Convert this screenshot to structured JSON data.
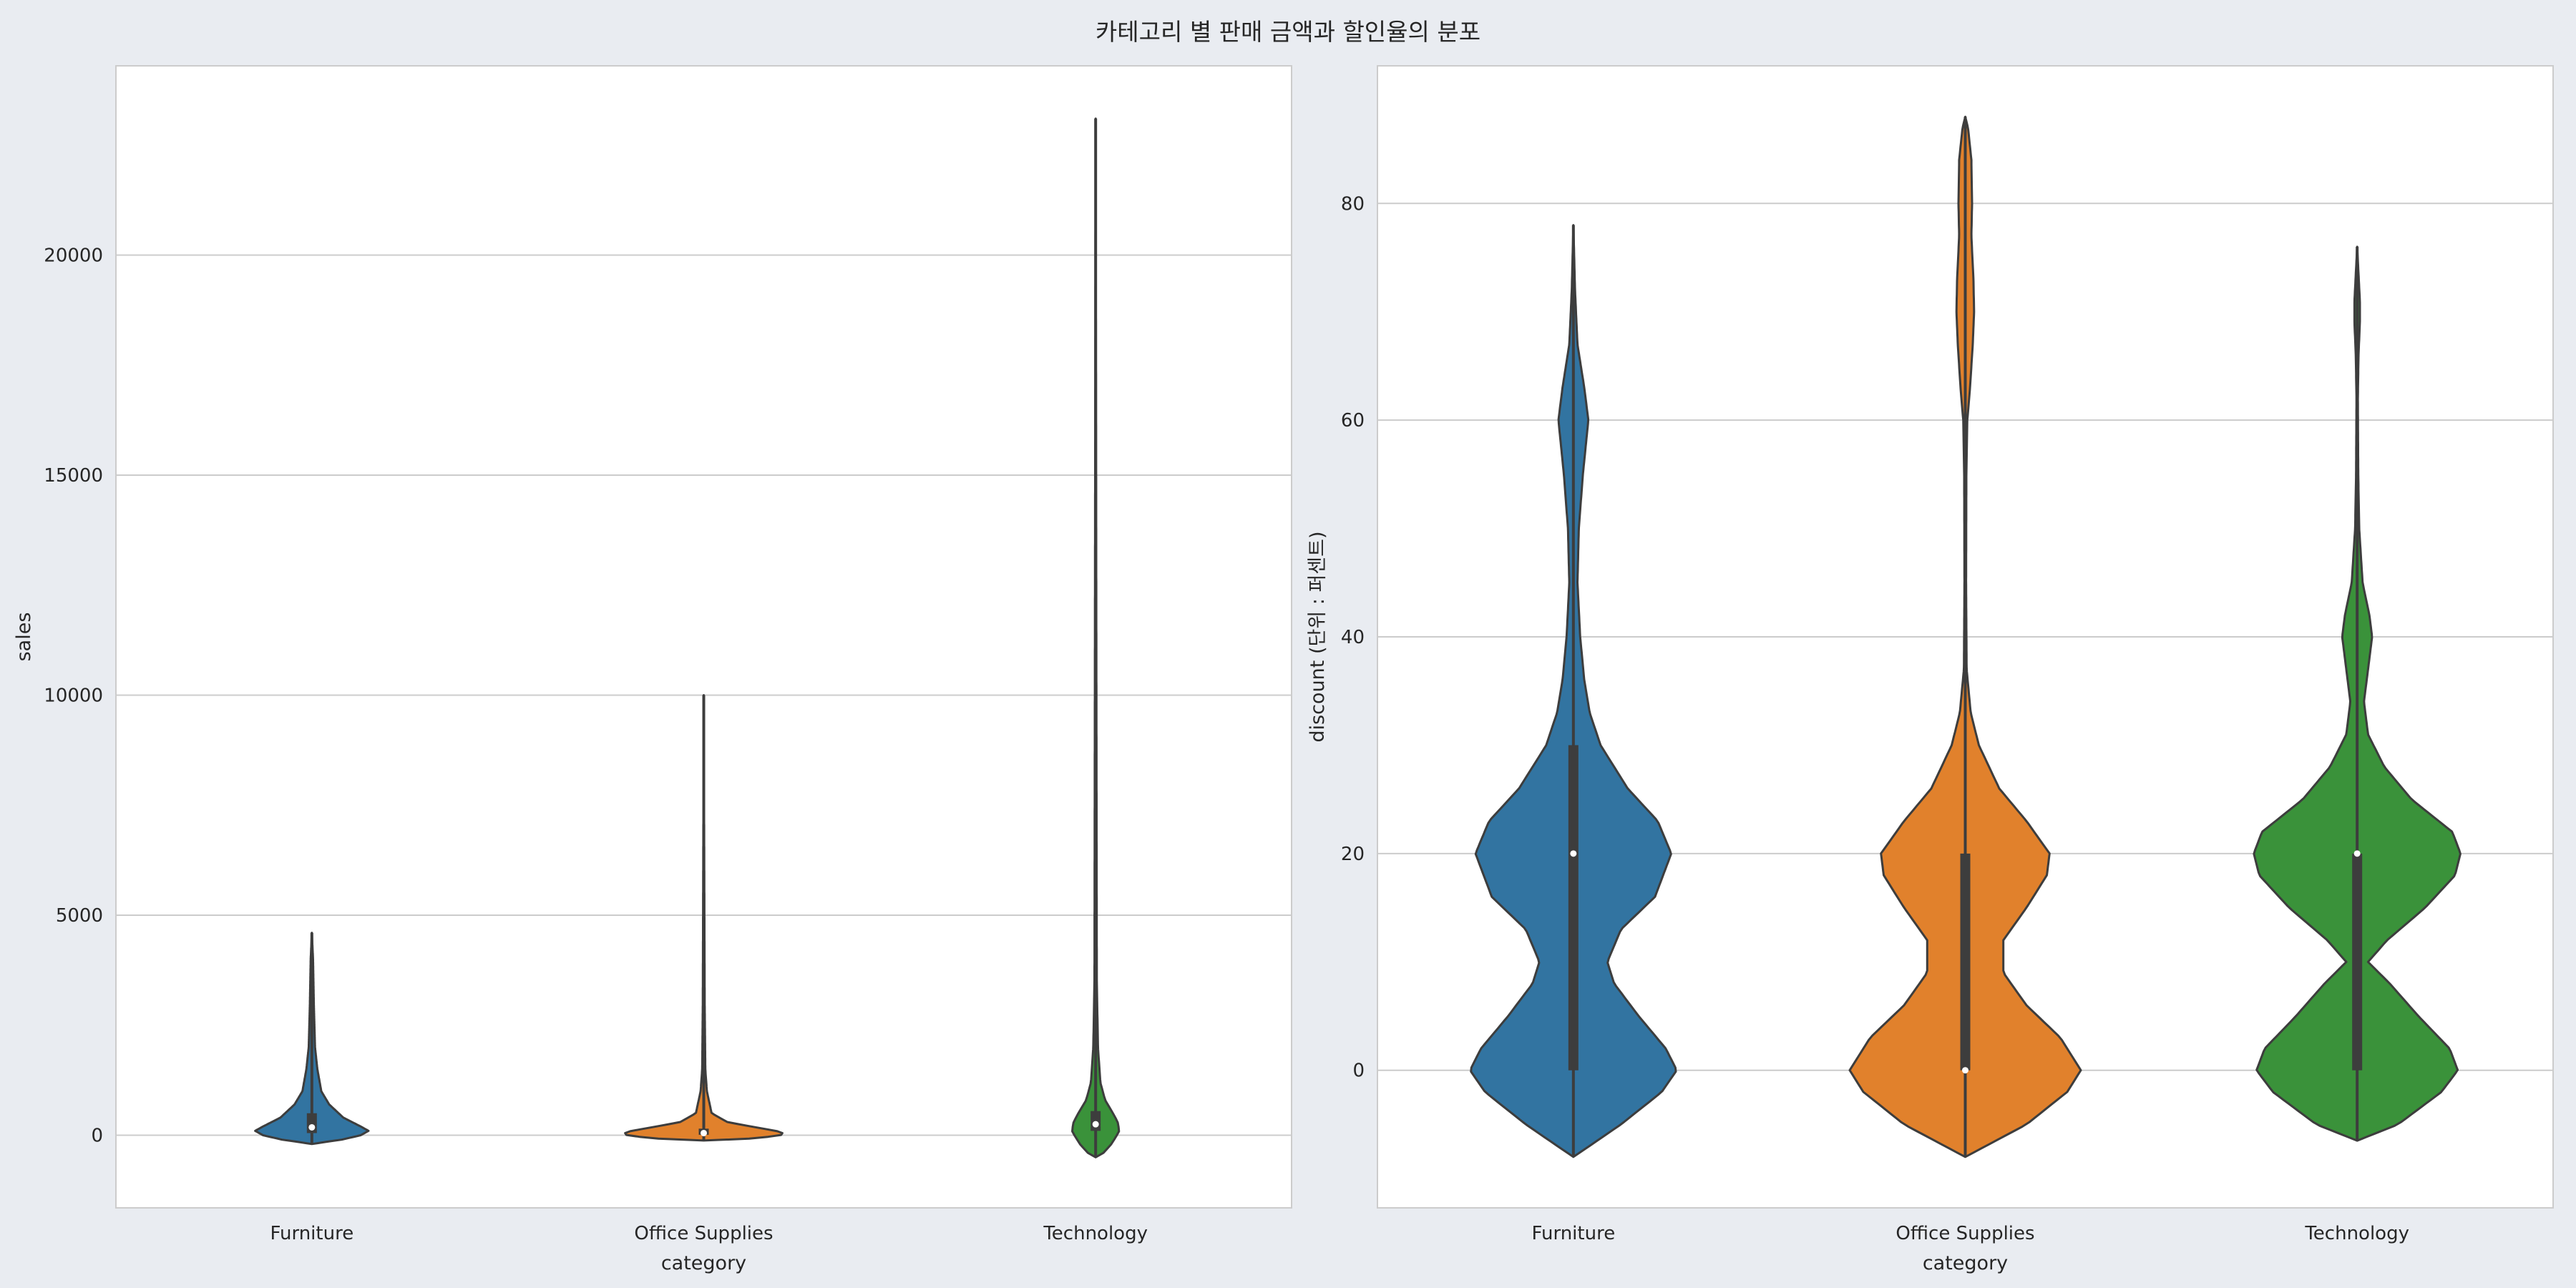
{
  "title": "카테고리 별 판매 금액과 할인율의 분포",
  "colors": {
    "Furniture": "#3274a1",
    "Office Supplies": "#e1812c",
    "Technology": "#3a923a",
    "edge": "#3d3d3d",
    "grid": "#cccccc",
    "axes_bg": "#ffffff",
    "fig_bg": "#e9ecf1"
  },
  "chart_data": [
    {
      "type": "violin",
      "xlabel": "category",
      "ylabel": "sales",
      "categories": [
        "Furniture",
        "Office Supplies",
        "Technology"
      ],
      "ylim": [
        -1650,
        24300
      ],
      "yticks": [
        0,
        5000,
        10000,
        15000,
        20000
      ],
      "grid": true,
      "violins": [
        {
          "category": "Furniture",
          "min": -200,
          "max": 4600,
          "q1": 50,
          "median": 180,
          "q3": 500,
          "profile": [
            [
              -200,
              0.0
            ],
            [
              -150,
              0.18
            ],
            [
              -100,
              0.38
            ],
            [
              0,
              0.62
            ],
            [
              100,
              0.72
            ],
            [
              200,
              0.62
            ],
            [
              400,
              0.4
            ],
            [
              700,
              0.22
            ],
            [
              1000,
              0.12
            ],
            [
              1500,
              0.07
            ],
            [
              2000,
              0.04
            ],
            [
              3000,
              0.025
            ],
            [
              4000,
              0.015
            ],
            [
              4600,
              0.0
            ]
          ]
        },
        {
          "category": "Office Supplies",
          "min": -120,
          "max": 10000,
          "q1": 10,
          "median": 50,
          "q3": 150,
          "profile": [
            [
              -120,
              0.0
            ],
            [
              -100,
              0.45
            ],
            [
              -30,
              0.85
            ],
            [
              0,
              0.98
            ],
            [
              50,
              1.0
            ],
            [
              100,
              0.92
            ],
            [
              150,
              0.75
            ],
            [
              300,
              0.3
            ],
            [
              500,
              0.1
            ],
            [
              1000,
              0.04
            ],
            [
              1500,
              0.02
            ],
            [
              3000,
              0.012
            ],
            [
              10000,
              0.0
            ]
          ]
        },
        {
          "category": "Technology",
          "min": -500,
          "max": 23100,
          "q1": 100,
          "median": 250,
          "q3": 550,
          "profile": [
            [
              -500,
              0.0
            ],
            [
              -400,
              0.1
            ],
            [
              -200,
              0.2
            ],
            [
              0,
              0.27
            ],
            [
              100,
              0.3
            ],
            [
              300,
              0.28
            ],
            [
              500,
              0.22
            ],
            [
              800,
              0.12
            ],
            [
              1200,
              0.06
            ],
            [
              2000,
              0.03
            ],
            [
              3500,
              0.015
            ],
            [
              23100,
              0.0
            ]
          ]
        }
      ]
    },
    {
      "type": "violin",
      "xlabel": "category",
      "ylabel": "discount (단위 : 퍼센트)",
      "categories": [
        "Furniture",
        "Office Supplies",
        "Technology"
      ],
      "ylim": [
        -12.7,
        92.7
      ],
      "yticks": [
        0,
        20,
        40,
        60,
        80
      ],
      "grid": true,
      "violins": [
        {
          "category": "Furniture",
          "min": -8,
          "max": 78,
          "q1": 0,
          "median": 20,
          "q3": 30,
          "profile": [
            [
              -8,
              0.0
            ],
            [
              -5,
              0.35
            ],
            [
              -2,
              0.65
            ],
            [
              0,
              0.76
            ],
            [
              2,
              0.68
            ],
            [
              5,
              0.48
            ],
            [
              8,
              0.3
            ],
            [
              10,
              0.25
            ],
            [
              13,
              0.35
            ],
            [
              16,
              0.6
            ],
            [
              20,
              0.72
            ],
            [
              23,
              0.62
            ],
            [
              26,
              0.4
            ],
            [
              30,
              0.2
            ],
            [
              33,
              0.12
            ],
            [
              36,
              0.08
            ],
            [
              40,
              0.05
            ],
            [
              45,
              0.03
            ],
            [
              50,
              0.04
            ],
            [
              55,
              0.07
            ],
            [
              60,
              0.11
            ],
            [
              63,
              0.08
            ],
            [
              67,
              0.03
            ],
            [
              72,
              0.012
            ],
            [
              78,
              0.0
            ]
          ]
        },
        {
          "category": "Office Supplies",
          "min": -8,
          "max": 88,
          "q1": 0,
          "median": 0,
          "q3": 20,
          "profile": [
            [
              -8,
              0.0
            ],
            [
              -5,
              0.45
            ],
            [
              -2,
              0.75
            ],
            [
              0,
              0.85
            ],
            [
              3,
              0.7
            ],
            [
              6,
              0.45
            ],
            [
              9,
              0.28
            ],
            [
              12,
              0.28
            ],
            [
              15,
              0.45
            ],
            [
              18,
              0.6
            ],
            [
              20,
              0.62
            ],
            [
              23,
              0.45
            ],
            [
              26,
              0.25
            ],
            [
              30,
              0.1
            ],
            [
              33,
              0.04
            ],
            [
              37,
              0.01
            ],
            [
              45,
              0.006
            ],
            [
              55,
              0.008
            ],
            [
              60,
              0.015
            ],
            [
              63,
              0.035
            ],
            [
              67,
              0.055
            ],
            [
              70,
              0.065
            ],
            [
              73,
              0.06
            ],
            [
              77,
              0.045
            ],
            [
              80,
              0.05
            ],
            [
              84,
              0.045
            ],
            [
              87,
              0.02
            ],
            [
              88,
              0.0
            ]
          ]
        },
        {
          "category": "Technology",
          "min": -6.5,
          "max": 76,
          "q1": 0,
          "median": 20,
          "q3": 20,
          "profile": [
            [
              -6.5,
              0.0
            ],
            [
              -5,
              0.3
            ],
            [
              -2,
              0.62
            ],
            [
              0,
              0.74
            ],
            [
              2,
              0.68
            ],
            [
              5,
              0.45
            ],
            [
              8,
              0.24
            ],
            [
              10,
              0.08
            ],
            [
              12,
              0.22
            ],
            [
              15,
              0.5
            ],
            [
              18,
              0.72
            ],
            [
              20,
              0.76
            ],
            [
              22,
              0.7
            ],
            [
              25,
              0.4
            ],
            [
              28,
              0.2
            ],
            [
              31,
              0.08
            ],
            [
              34,
              0.05
            ],
            [
              37,
              0.08
            ],
            [
              40,
              0.11
            ],
            [
              42,
              0.09
            ],
            [
              45,
              0.04
            ],
            [
              50,
              0.015
            ],
            [
              55,
              0.008
            ],
            [
              62,
              0.005
            ],
            [
              66,
              0.01
            ],
            [
              69,
              0.02
            ],
            [
              71,
              0.02
            ],
            [
              74,
              0.008
            ],
            [
              76,
              0.0
            ]
          ]
        }
      ]
    }
  ]
}
